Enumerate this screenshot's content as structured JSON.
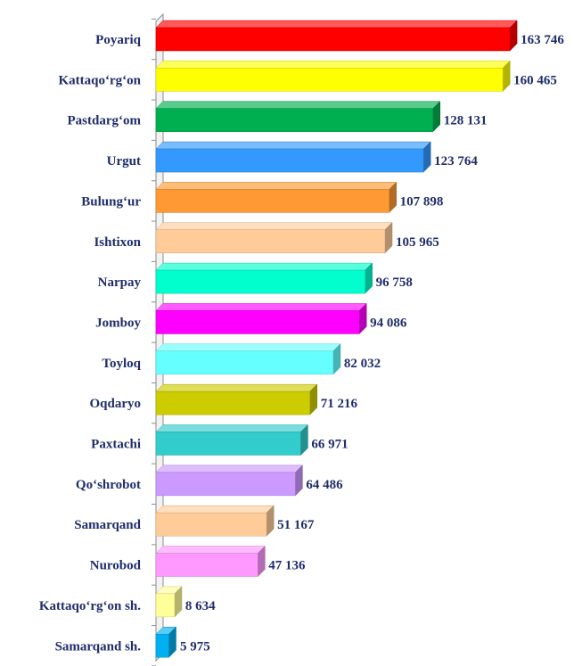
{
  "chart_data": {
    "type": "bar",
    "orientation": "horizontal",
    "style": "3d",
    "grid": false,
    "legend": "none",
    "xlim": [
      0,
      170000
    ],
    "categories": [
      "Poyariq",
      "Kattaqo‘rg‘on",
      "Pastdarg‘om",
      "Urgut",
      "Bulung‘ur",
      "Ishtixon",
      "Narpay",
      "Jomboy",
      "Toyloq",
      "Oqdaryo",
      "Paxtachi",
      "Qo‘shrobot",
      "Samarqand",
      "Nurobod",
      "Kattaqo‘rg‘on sh.",
      "Samarqand sh."
    ],
    "values": [
      163746,
      160465,
      128131,
      123764,
      107898,
      105965,
      96758,
      94086,
      82032,
      71216,
      66971,
      64486,
      51167,
      47136,
      8634,
      5975
    ],
    "value_labels": [
      "163 746",
      "160 465",
      "128 131",
      "123 764",
      "107 898",
      "105 965",
      "96 758",
      "94 086",
      "82 032",
      "71 216",
      "66 971",
      "64 486",
      "51 167",
      "47 136",
      "8 634",
      "5 975"
    ],
    "colors": [
      "#ff0000",
      "#ffff00",
      "#00b050",
      "#3399ff",
      "#ff9933",
      "#ffcc99",
      "#00ffcc",
      "#ff00ff",
      "#66ffff",
      "#cccc00",
      "#33cccc",
      "#cc99ff",
      "#ffcc99",
      "#ff99ff",
      "#ffff99",
      "#00b0f0"
    ]
  }
}
